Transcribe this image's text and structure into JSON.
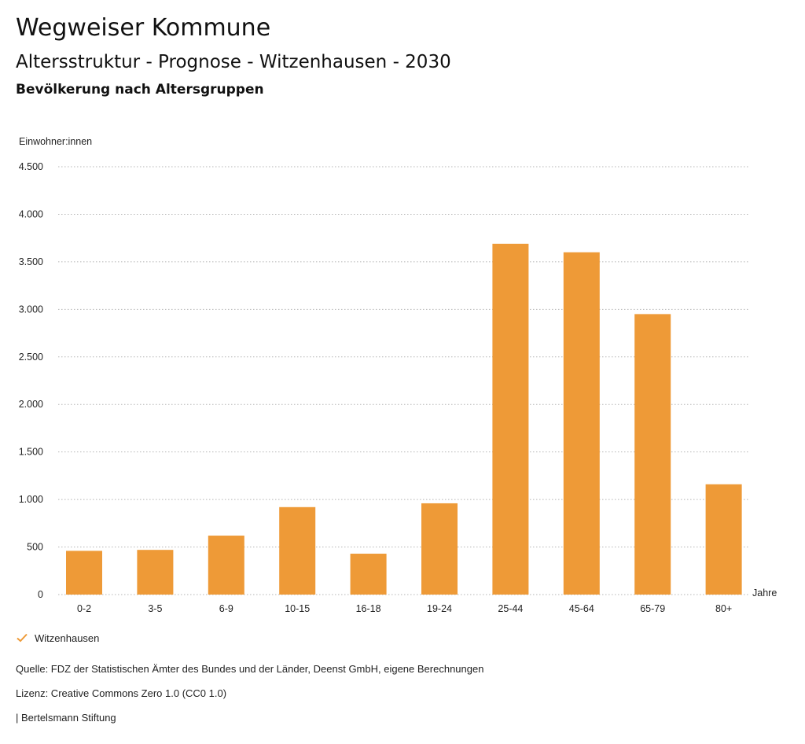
{
  "header": {
    "title": "Wegweiser Kommune",
    "subtitle": "Altersstruktur - Prognose - Witzenhausen - 2030",
    "section": "Bevölkerung nach Altersgruppen"
  },
  "chart_data": {
    "type": "bar",
    "ylabel": "Einwohner:innen",
    "xlabel": "Jahre",
    "ylim": [
      0,
      4500
    ],
    "yticks": [
      0,
      500,
      1000,
      1500,
      2000,
      2500,
      3000,
      3500,
      4000,
      4500
    ],
    "ytick_labels": [
      "0",
      "500",
      "1.000",
      "1.500",
      "2.000",
      "2.500",
      "3.000",
      "3.500",
      "4.000",
      "4.500"
    ],
    "grid": true,
    "categories": [
      "0-2",
      "3-5",
      "6-9",
      "10-15",
      "16-18",
      "19-24",
      "25-44",
      "45-64",
      "65-79",
      "80+"
    ],
    "series": [
      {
        "name": "Witzenhausen",
        "values": [
          460,
          470,
          620,
          920,
          430,
          960,
          3690,
          3600,
          2950,
          1160
        ]
      }
    ],
    "bar_color": "#ee9a37",
    "legend_position": "bottom-left"
  },
  "legend": {
    "label": "Witzenhausen",
    "icon": "check-icon"
  },
  "footer": {
    "source": "Quelle: FDZ der Statistischen Ämter des Bundes und der Länder, Deenst GmbH, eigene Berechnungen",
    "license": "Lizenz: Creative Commons Zero 1.0 (CC0 1.0)",
    "publisher": "| Bertelsmann Stiftung"
  }
}
